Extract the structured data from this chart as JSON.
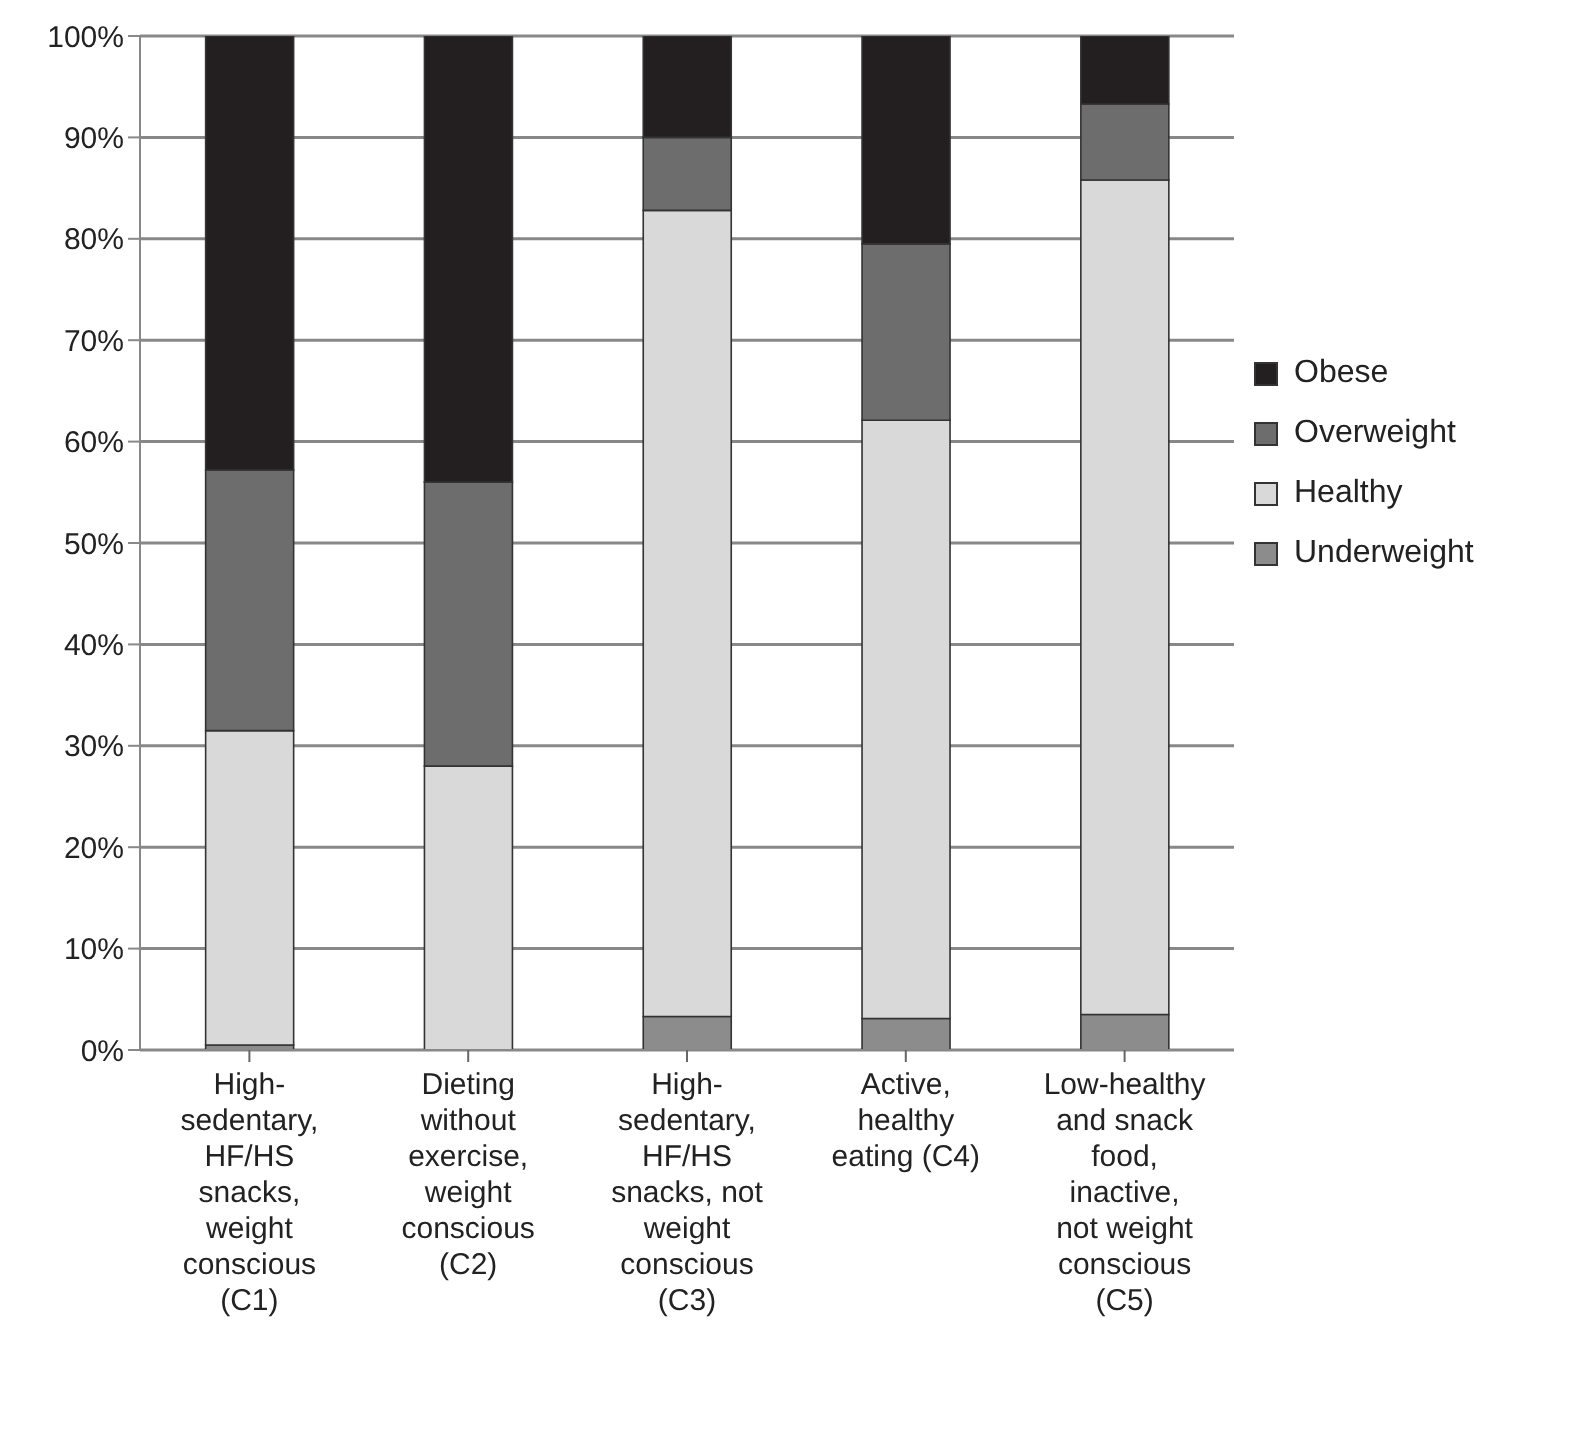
{
  "chart_data": {
    "type": "bar",
    "stacked": true,
    "categories": [
      "High-sedentary, HF/HS snacks, weight conscious (C1)",
      "Dieting without exercise, weight conscious (C2)",
      "High-sedentary, HF/HS snacks, not weight conscious (C3)",
      "Active, healthy eating (C4)",
      "Low-healthy and snack food, inactive, not weight conscious (C5)"
    ],
    "series": [
      {
        "name": "Underweight",
        "color": "#8c8c8c",
        "values": [
          0.5,
          0,
          3.3,
          3.1,
          3.5
        ]
      },
      {
        "name": "Healthy",
        "color": "#d9d9d9",
        "values": [
          31,
          28,
          79.5,
          59,
          82.3
        ]
      },
      {
        "name": "Overweight",
        "color": "#6d6d6d",
        "values": [
          25.7,
          28,
          7.2,
          17.4,
          7.5
        ]
      },
      {
        "name": "Obese",
        "color": "#231f20",
        "values": [
          42.8,
          44,
          10,
          20.5,
          6.7
        ]
      }
    ],
    "ylim": [
      0,
      100
    ],
    "yticks": [
      {
        "value": 0,
        "label": "0%"
      },
      {
        "value": 10,
        "label": "10%"
      },
      {
        "value": 20,
        "label": "20%"
      },
      {
        "value": 30,
        "label": "30%"
      },
      {
        "value": 40,
        "label": "40%"
      },
      {
        "value": 50,
        "label": "50%"
      },
      {
        "value": 60,
        "label": "60%"
      },
      {
        "value": 70,
        "label": "70%"
      },
      {
        "value": 80,
        "label": "80%"
      },
      {
        "value": 90,
        "label": "90%"
      },
      {
        "value": 100,
        "label": "100%"
      }
    ],
    "grid": "y",
    "legend": "right"
  }
}
